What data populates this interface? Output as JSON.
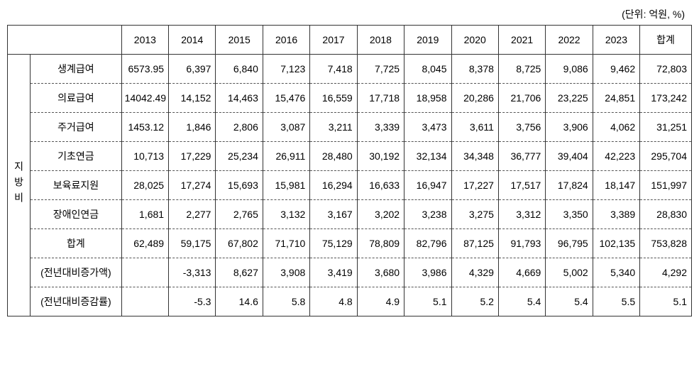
{
  "unit_label": "(단위: 억원, %)",
  "side_label": "지방비",
  "columns": [
    "",
    "2013",
    "2014",
    "2015",
    "2016",
    "2017",
    "2018",
    "2019",
    "2020",
    "2021",
    "2022",
    "2023",
    "합계"
  ],
  "rows": [
    {
      "label": "생계급여",
      "values": [
        "6573.95",
        "6,397",
        "6,840",
        "7,123",
        "7,418",
        "7,725",
        "8,045",
        "8,378",
        "8,725",
        "9,086",
        "9,462",
        "72,803"
      ]
    },
    {
      "label": "의료급여",
      "values": [
        "14042.49",
        "14,152",
        "14,463",
        "15,476",
        "16,559",
        "17,718",
        "18,958",
        "20,286",
        "21,706",
        "23,225",
        "24,851",
        "173,242"
      ]
    },
    {
      "label": "주거급여",
      "values": [
        "1453.12",
        "1,846",
        "2,806",
        "3,087",
        "3,211",
        "3,339",
        "3,473",
        "3,611",
        "3,756",
        "3,906",
        "4,062",
        "31,251"
      ]
    },
    {
      "label": "기초연금",
      "values": [
        "10,713",
        "17,229",
        "25,234",
        "26,911",
        "28,480",
        "30,192",
        "32,134",
        "34,348",
        "36,777",
        "39,404",
        "42,223",
        "295,704"
      ]
    },
    {
      "label": "보육료지원",
      "values": [
        "28,025",
        "17,274",
        "15,693",
        "15,981",
        "16,294",
        "16,633",
        "16,947",
        "17,227",
        "17,517",
        "17,824",
        "18,147",
        "151,997"
      ]
    },
    {
      "label": "장애인연금",
      "values": [
        "1,681",
        "2,277",
        "2,765",
        "3,132",
        "3,167",
        "3,202",
        "3,238",
        "3,275",
        "3,312",
        "3,350",
        "3,389",
        "28,830"
      ]
    },
    {
      "label": "합계",
      "values": [
        "62,489",
        "59,175",
        "67,802",
        "71,710",
        "75,129",
        "78,809",
        "82,796",
        "87,125",
        "91,793",
        "96,795",
        "102,135",
        "753,828"
      ]
    },
    {
      "label": "(전년대비증가액)",
      "values": [
        "",
        "-3,313",
        "8,627",
        "3,908",
        "3,419",
        "3,680",
        "3,986",
        "4,329",
        "4,669",
        "5,002",
        "5,340",
        "4,292"
      ]
    },
    {
      "label": "(전년대비증감률)",
      "values": [
        "",
        "-5.3",
        "14.6",
        "5.8",
        "4.8",
        "4.9",
        "5.1",
        "5.2",
        "5.4",
        "5.4",
        "5.5",
        "5.1"
      ]
    }
  ],
  "styling": {
    "font_family": "Malgun Gothic",
    "header_fontsize": 14,
    "cell_fontsize": 14,
    "border_color": "#333333",
    "dash_border_color": "#555555",
    "background_color": "#ffffff",
    "text_color": "#000000",
    "num_align": "right",
    "label_align": "center"
  }
}
